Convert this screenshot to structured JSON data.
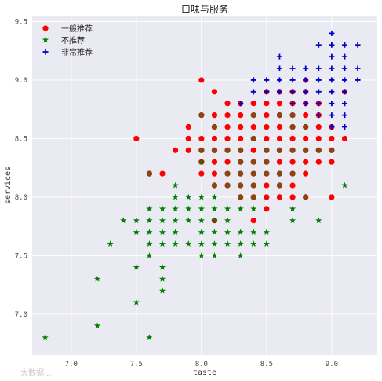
{
  "chart_data": {
    "type": "scatter",
    "title": "口味与服务",
    "xlabel": "taste",
    "ylabel": "services",
    "xlim": [
      6.7,
      9.35
    ],
    "ylim": [
      6.65,
      9.55
    ],
    "xticks": [
      "7.0",
      "7.5",
      "8.0",
      "8.5",
      "9.0"
    ],
    "yticks": [
      "7.0",
      "7.5",
      "8.0",
      "8.5",
      "9.0",
      "9.5"
    ],
    "grid": true,
    "legend_position": "top-left",
    "series": [
      {
        "name": "一般推荐",
        "marker": "circle",
        "color": "#ff0000",
        "points": [
          [
            7.5,
            8.5
          ],
          [
            7.6,
            8.2
          ],
          [
            7.7,
            8.2
          ],
          [
            7.8,
            8.4
          ],
          [
            7.9,
            8.4
          ],
          [
            7.9,
            8.5
          ],
          [
            7.9,
            8.6
          ],
          [
            8.0,
            9.0
          ],
          [
            8.0,
            8.7
          ],
          [
            8.0,
            8.5
          ],
          [
            8.0,
            8.4
          ],
          [
            8.0,
            8.3
          ],
          [
            8.0,
            8.2
          ],
          [
            8.1,
            8.9
          ],
          [
            8.1,
            8.7
          ],
          [
            8.1,
            8.6
          ],
          [
            8.1,
            8.5
          ],
          [
            8.1,
            8.4
          ],
          [
            8.1,
            8.3
          ],
          [
            8.1,
            8.2
          ],
          [
            8.1,
            8.1
          ],
          [
            8.1,
            7.8
          ],
          [
            8.2,
            8.8
          ],
          [
            8.2,
            8.7
          ],
          [
            8.2,
            8.6
          ],
          [
            8.2,
            8.5
          ],
          [
            8.2,
            8.4
          ],
          [
            8.2,
            8.3
          ],
          [
            8.2,
            8.2
          ],
          [
            8.2,
            8.1
          ],
          [
            8.3,
            8.8
          ],
          [
            8.3,
            8.7
          ],
          [
            8.3,
            8.6
          ],
          [
            8.3,
            8.5
          ],
          [
            8.3,
            8.4
          ],
          [
            8.3,
            8.3
          ],
          [
            8.3,
            8.2
          ],
          [
            8.3,
            8.1
          ],
          [
            8.3,
            8.0
          ],
          [
            8.4,
            8.8
          ],
          [
            8.4,
            8.7
          ],
          [
            8.4,
            8.6
          ],
          [
            8.4,
            8.5
          ],
          [
            8.4,
            8.4
          ],
          [
            8.4,
            8.3
          ],
          [
            8.4,
            8.2
          ],
          [
            8.4,
            8.1
          ],
          [
            8.4,
            8.0
          ],
          [
            8.4,
            7.8
          ],
          [
            8.5,
            8.9
          ],
          [
            8.5,
            8.8
          ],
          [
            8.5,
            8.7
          ],
          [
            8.5,
            8.6
          ],
          [
            8.5,
            8.5
          ],
          [
            8.5,
            8.4
          ],
          [
            8.5,
            8.3
          ],
          [
            8.5,
            8.2
          ],
          [
            8.5,
            8.1
          ],
          [
            8.5,
            8.0
          ],
          [
            8.5,
            7.9
          ],
          [
            8.6,
            8.9
          ],
          [
            8.6,
            8.8
          ],
          [
            8.6,
            8.7
          ],
          [
            8.6,
            8.6
          ],
          [
            8.6,
            8.5
          ],
          [
            8.6,
            8.4
          ],
          [
            8.6,
            8.3
          ],
          [
            8.6,
            8.2
          ],
          [
            8.6,
            8.1
          ],
          [
            8.6,
            8.0
          ],
          [
            8.7,
            8.9
          ],
          [
            8.7,
            8.8
          ],
          [
            8.7,
            8.7
          ],
          [
            8.7,
            8.6
          ],
          [
            8.7,
            8.5
          ],
          [
            8.7,
            8.4
          ],
          [
            8.7,
            8.3
          ],
          [
            8.7,
            8.2
          ],
          [
            8.7,
            8.1
          ],
          [
            8.7,
            8.0
          ],
          [
            8.8,
            9.0
          ],
          [
            8.8,
            8.9
          ],
          [
            8.8,
            8.8
          ],
          [
            8.8,
            8.7
          ],
          [
            8.8,
            8.6
          ],
          [
            8.8,
            8.5
          ],
          [
            8.8,
            8.4
          ],
          [
            8.8,
            8.3
          ],
          [
            8.8,
            8.2
          ],
          [
            8.8,
            8.0
          ],
          [
            8.9,
            8.8
          ],
          [
            8.9,
            8.7
          ],
          [
            8.9,
            8.6
          ],
          [
            8.9,
            8.5
          ],
          [
            8.9,
            8.4
          ],
          [
            8.9,
            8.3
          ],
          [
            9.0,
            8.6
          ],
          [
            9.0,
            8.5
          ],
          [
            9.0,
            8.4
          ],
          [
            9.0,
            8.3
          ],
          [
            9.0,
            8.0
          ],
          [
            9.1,
            8.9
          ],
          [
            9.1,
            8.5
          ]
        ]
      },
      {
        "name": "不推荐",
        "marker": "star",
        "color": "#008000",
        "points": [
          [
            6.8,
            6.8
          ],
          [
            7.2,
            6.9
          ],
          [
            7.2,
            7.3
          ],
          [
            7.3,
            7.6
          ],
          [
            7.4,
            7.8
          ],
          [
            7.5,
            7.1
          ],
          [
            7.5,
            7.4
          ],
          [
            7.5,
            7.7
          ],
          [
            7.5,
            7.8
          ],
          [
            7.6,
            6.8
          ],
          [
            7.6,
            7.5
          ],
          [
            7.6,
            7.6
          ],
          [
            7.6,
            7.7
          ],
          [
            7.6,
            7.8
          ],
          [
            7.6,
            7.9
          ],
          [
            7.7,
            7.2
          ],
          [
            7.7,
            7.3
          ],
          [
            7.7,
            7.4
          ],
          [
            7.7,
            7.6
          ],
          [
            7.7,
            7.7
          ],
          [
            7.7,
            7.8
          ],
          [
            7.7,
            7.9
          ],
          [
            7.8,
            7.6
          ],
          [
            7.8,
            7.7
          ],
          [
            7.8,
            7.8
          ],
          [
            7.8,
            7.9
          ],
          [
            7.8,
            8.0
          ],
          [
            7.8,
            8.1
          ],
          [
            7.9,
            7.6
          ],
          [
            7.9,
            7.8
          ],
          [
            7.9,
            7.9
          ],
          [
            7.9,
            8.0
          ],
          [
            8.0,
            7.5
          ],
          [
            8.0,
            7.6
          ],
          [
            8.0,
            7.7
          ],
          [
            8.0,
            7.8
          ],
          [
            8.0,
            7.9
          ],
          [
            8.0,
            8.0
          ],
          [
            8.0,
            8.3
          ],
          [
            8.1,
            7.5
          ],
          [
            8.1,
            7.6
          ],
          [
            8.1,
            7.7
          ],
          [
            8.1,
            7.8
          ],
          [
            8.1,
            7.9
          ],
          [
            8.1,
            8.0
          ],
          [
            8.2,
            7.6
          ],
          [
            8.2,
            7.7
          ],
          [
            8.2,
            7.8
          ],
          [
            8.2,
            7.9
          ],
          [
            8.3,
            7.5
          ],
          [
            8.3,
            7.6
          ],
          [
            8.3,
            7.7
          ],
          [
            8.3,
            7.9
          ],
          [
            8.4,
            7.6
          ],
          [
            8.4,
            7.7
          ],
          [
            8.4,
            7.9
          ],
          [
            8.5,
            7.6
          ],
          [
            8.5,
            7.7
          ],
          [
            8.7,
            7.8
          ],
          [
            8.7,
            7.9
          ],
          [
            8.9,
            7.8
          ],
          [
            9.1,
            8.1
          ]
        ]
      },
      {
        "name": "非常推荐",
        "marker": "plus",
        "color": "#0000cc",
        "points": [
          [
            8.3,
            8.8
          ],
          [
            8.4,
            8.9
          ],
          [
            8.4,
            9.0
          ],
          [
            8.5,
            8.9
          ],
          [
            8.5,
            9.0
          ],
          [
            8.6,
            8.9
          ],
          [
            8.6,
            9.0
          ],
          [
            8.6,
            9.1
          ],
          [
            8.6,
            9.2
          ],
          [
            8.7,
            8.8
          ],
          [
            8.7,
            8.9
          ],
          [
            8.7,
            9.0
          ],
          [
            8.7,
            9.1
          ],
          [
            8.8,
            8.8
          ],
          [
            8.8,
            8.9
          ],
          [
            8.8,
            9.0
          ],
          [
            8.8,
            9.1
          ],
          [
            8.9,
            8.7
          ],
          [
            8.9,
            8.8
          ],
          [
            8.9,
            8.9
          ],
          [
            8.9,
            9.0
          ],
          [
            8.9,
            9.1
          ],
          [
            8.9,
            9.3
          ],
          [
            9.0,
            8.6
          ],
          [
            9.0,
            8.7
          ],
          [
            9.0,
            8.8
          ],
          [
            9.0,
            8.9
          ],
          [
            9.0,
            9.0
          ],
          [
            9.0,
            9.1
          ],
          [
            9.0,
            9.2
          ],
          [
            9.0,
            9.3
          ],
          [
            9.0,
            9.4
          ],
          [
            9.1,
            8.6
          ],
          [
            9.1,
            8.7
          ],
          [
            9.1,
            8.8
          ],
          [
            9.1,
            8.9
          ],
          [
            9.1,
            9.0
          ],
          [
            9.1,
            9.1
          ],
          [
            9.1,
            9.2
          ],
          [
            9.1,
            9.3
          ],
          [
            9.2,
            9.0
          ],
          [
            9.2,
            9.1
          ],
          [
            9.2,
            9.3
          ]
        ]
      },
      {
        "name": "",
        "marker": "circle",
        "color": "#8b4513",
        "points": [
          [
            7.6,
            8.2
          ],
          [
            8.0,
            8.7
          ],
          [
            8.0,
            8.4
          ],
          [
            8.1,
            8.6
          ],
          [
            8.1,
            8.4
          ],
          [
            8.1,
            8.1
          ],
          [
            8.2,
            8.4
          ],
          [
            8.2,
            8.2
          ],
          [
            8.2,
            8.1
          ],
          [
            8.3,
            8.4
          ],
          [
            8.3,
            8.3
          ],
          [
            8.3,
            8.2
          ],
          [
            8.3,
            8.1
          ],
          [
            8.3,
            8.0
          ],
          [
            8.4,
            8.7
          ],
          [
            8.4,
            8.5
          ],
          [
            8.4,
            8.3
          ],
          [
            8.4,
            8.2
          ],
          [
            8.4,
            8.1
          ],
          [
            8.4,
            8.0
          ],
          [
            8.5,
            8.4
          ],
          [
            8.5,
            8.3
          ],
          [
            8.5,
            8.2
          ],
          [
            8.6,
            8.7
          ],
          [
            8.6,
            8.4
          ],
          [
            8.6,
            8.2
          ],
          [
            8.6,
            8.1
          ],
          [
            8.7,
            8.7
          ],
          [
            8.7,
            8.6
          ],
          [
            8.7,
            8.4
          ],
          [
            8.7,
            8.2
          ],
          [
            8.8,
            8.6
          ],
          [
            8.8,
            8.4
          ],
          [
            8.8,
            8.0
          ],
          [
            8.9,
            8.4
          ],
          [
            9.0,
            8.4
          ]
        ]
      }
    ]
  },
  "watermark": "大数据..."
}
